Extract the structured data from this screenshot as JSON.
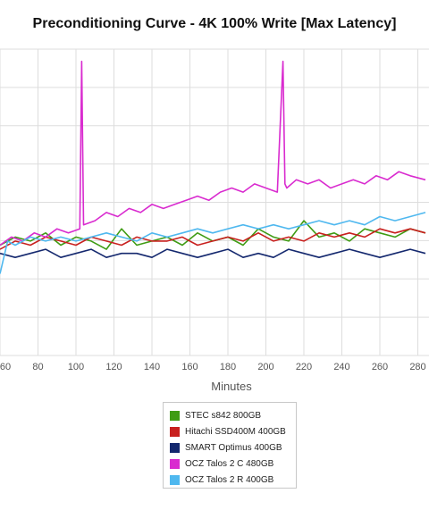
{
  "chart_data": {
    "type": "line",
    "title": "Preconditioning Curve - 4K 100% Write [Max Latency]",
    "xlabel": "Minutes",
    "x_ticks": [
      60,
      80,
      100,
      120,
      140,
      160,
      180,
      200,
      220,
      240,
      260,
      280
    ],
    "xlim": [
      60,
      284
    ],
    "grid": true,
    "legend_position": "bottom",
    "series": [
      {
        "name": "STEC s842 800GB",
        "color": "#3f9c14",
        "x": [
          60,
          68,
          76,
          84,
          92,
          100,
          108,
          116,
          124,
          132,
          140,
          148,
          156,
          164,
          172,
          180,
          188,
          196,
          204,
          212,
          220,
          228,
          236,
          244,
          252,
          260,
          268,
          276,
          284
        ],
        "values": [
          0.27,
          0.29,
          0.28,
          0.3,
          0.27,
          0.29,
          0.28,
          0.26,
          0.31,
          0.27,
          0.28,
          0.29,
          0.27,
          0.3,
          0.28,
          0.29,
          0.27,
          0.31,
          0.29,
          0.28,
          0.33,
          0.29,
          0.3,
          0.28,
          0.31,
          0.3,
          0.29,
          0.31,
          0.3
        ]
      },
      {
        "name": "Hitachi SSD400M 400GB",
        "color": "#c8201e",
        "x": [
          60,
          68,
          76,
          84,
          92,
          100,
          108,
          116,
          124,
          132,
          140,
          148,
          156,
          164,
          172,
          180,
          188,
          196,
          204,
          212,
          220,
          228,
          236,
          244,
          252,
          260,
          268,
          276,
          284
        ],
        "values": [
          0.26,
          0.28,
          0.27,
          0.29,
          0.28,
          0.27,
          0.29,
          0.28,
          0.27,
          0.29,
          0.28,
          0.28,
          0.29,
          0.27,
          0.28,
          0.29,
          0.28,
          0.3,
          0.28,
          0.29,
          0.28,
          0.3,
          0.29,
          0.3,
          0.29,
          0.31,
          0.3,
          0.31,
          0.3
        ]
      },
      {
        "name": "SMART Optimus 400GB",
        "color": "#14286e",
        "x": [
          60,
          68,
          76,
          84,
          92,
          100,
          108,
          116,
          124,
          132,
          140,
          148,
          156,
          164,
          172,
          180,
          188,
          196,
          204,
          212,
          220,
          228,
          236,
          244,
          252,
          260,
          268,
          276,
          284
        ],
        "values": [
          0.25,
          0.24,
          0.25,
          0.26,
          0.24,
          0.25,
          0.26,
          0.24,
          0.25,
          0.25,
          0.24,
          0.26,
          0.25,
          0.24,
          0.25,
          0.26,
          0.24,
          0.25,
          0.24,
          0.26,
          0.25,
          0.24,
          0.25,
          0.26,
          0.25,
          0.24,
          0.25,
          0.26,
          0.25
        ]
      },
      {
        "name": "OCZ Talos 2 C 480GB",
        "color": "#d92bcf",
        "x": [
          60,
          66,
          72,
          78,
          84,
          90,
          96,
          102,
          103,
          104,
          110,
          116,
          122,
          128,
          134,
          140,
          146,
          152,
          158,
          164,
          170,
          176,
          182,
          188,
          194,
          200,
          206,
          209,
          210,
          211,
          216,
          222,
          228,
          234,
          240,
          246,
          252,
          258,
          264,
          270,
          276,
          284
        ],
        "values": [
          0.27,
          0.29,
          0.28,
          0.3,
          0.29,
          0.31,
          0.3,
          0.31,
          0.72,
          0.32,
          0.33,
          0.35,
          0.34,
          0.36,
          0.35,
          0.37,
          0.36,
          0.37,
          0.38,
          0.39,
          0.38,
          0.4,
          0.41,
          0.4,
          0.42,
          0.41,
          0.4,
          0.72,
          0.42,
          0.41,
          0.43,
          0.42,
          0.43,
          0.41,
          0.42,
          0.43,
          0.42,
          0.44,
          0.43,
          0.45,
          0.44,
          0.43
        ]
      },
      {
        "name": "OCZ Talos 2 R 400GB",
        "color": "#4fb8ef",
        "x": [
          60,
          62,
          64,
          68,
          76,
          84,
          92,
          100,
          108,
          116,
          124,
          132,
          140,
          148,
          156,
          164,
          172,
          180,
          188,
          196,
          204,
          212,
          220,
          228,
          236,
          244,
          252,
          260,
          268,
          276,
          284
        ],
        "values": [
          0.2,
          0.24,
          0.28,
          0.27,
          0.29,
          0.28,
          0.29,
          0.28,
          0.29,
          0.3,
          0.29,
          0.28,
          0.3,
          0.29,
          0.3,
          0.31,
          0.3,
          0.31,
          0.32,
          0.31,
          0.32,
          0.31,
          0.32,
          0.33,
          0.32,
          0.33,
          0.32,
          0.34,
          0.33,
          0.34,
          0.35
        ]
      }
    ]
  }
}
